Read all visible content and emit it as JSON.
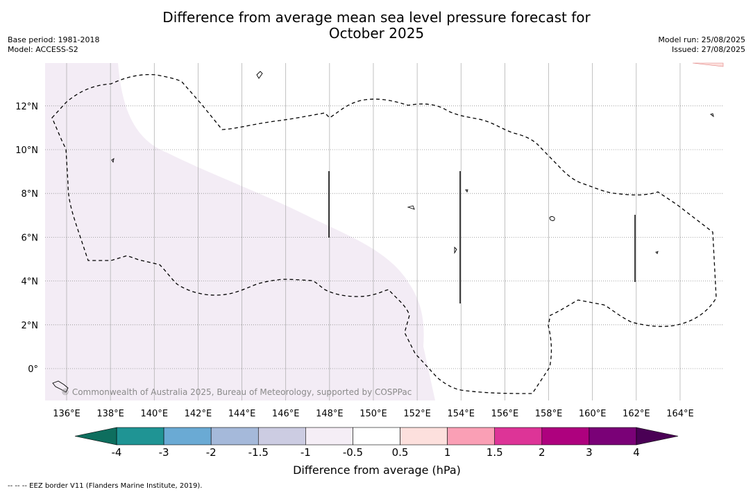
{
  "title_line1": "Difference from average mean sea level pressure forecast for",
  "title_line2": "October 2025",
  "base_period": "Base period: 1981-2018",
  "model": "Model: ACCESS-S2",
  "model_run": "Model run: 25/08/2025",
  "issued": "Issued: 27/08/2025",
  "copyright": "© Commonwealth of Australia 2025, Bureau of Meteorology, supported by COSPPac",
  "footnote": "--  --  -- EEZ border V11 (Flanders Marine Institute, 2019).",
  "colorbar_title": "Difference from average (hPa)",
  "map_data": {
    "lon_ticks": [
      "136°E",
      "138°E",
      "140°E",
      "142°E",
      "144°E",
      "146°E",
      "148°E",
      "150°E",
      "152°E",
      "154°E",
      "156°E",
      "158°E",
      "160°E",
      "162°E",
      "164°E"
    ],
    "lat_ticks": [
      "12°N",
      "10°N",
      "8°N",
      "6°N",
      "4°N",
      "2°N",
      "0°"
    ],
    "lon_values": [
      136,
      138,
      140,
      142,
      144,
      146,
      148,
      150,
      152,
      154,
      156,
      158,
      160,
      162,
      164
    ],
    "lat_values": [
      12,
      10,
      8,
      6,
      4,
      2,
      0
    ],
    "extent": {
      "lon_min": 135,
      "lon_max": 166,
      "lat_min": -1.5,
      "lat_max": 14
    },
    "shaded_region_category": "-1 to -0.5",
    "colorbar": {
      "labels": [
        "-4",
        "-3",
        "-2",
        "-1.5",
        "-1",
        "-0.5",
        "0.5",
        "1",
        "1.5",
        "2",
        "3",
        "4"
      ],
      "colors": [
        "#1f9494",
        "#6aaad4",
        "#a5b9da",
        "#cccce2",
        "#f5eef6",
        "#ffffff",
        "#fde0dd",
        "#fa9fb5",
        "#dd3497",
        "#ae017e",
        "#7a0177"
      ],
      "under_color": "#0e6e5e",
      "over_color": "#4a0055"
    }
  }
}
